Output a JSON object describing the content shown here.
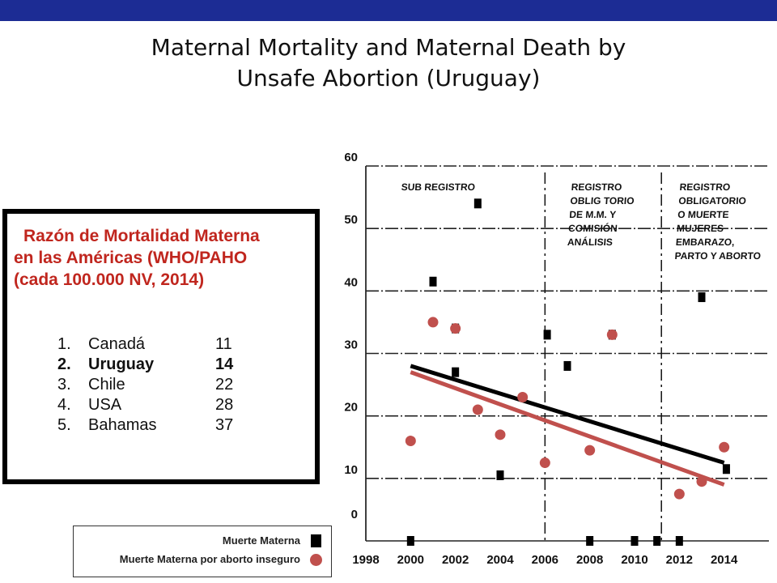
{
  "page": {
    "title_line1": "Maternal Mortality and Maternal Death by",
    "title_line2": "Unsafe Abortion (Uruguay)"
  },
  "ranking_box": {
    "heading_line1": "Razón de Mortalidad Materna",
    "heading_line2": "en las Américas (WHO/PAHO",
    "heading_line3": "(cada 100.000 NV, 2014)",
    "heading_color": "#c0261e",
    "rows": [
      {
        "num": "1.",
        "country": "Canadá",
        "value": "11",
        "bold": false
      },
      {
        "num": "2.",
        "country": "Uruguay",
        "value": "14",
        "bold": true
      },
      {
        "num": "3.",
        "country": "Chile",
        "value": "22",
        "bold": false
      },
      {
        "num": "4.",
        "country": "USA",
        "value": "28",
        "bold": false
      },
      {
        "num": "5.",
        "country": "Bahamas",
        "value": "37",
        "bold": false
      }
    ]
  },
  "legend": {
    "square_label": "Muerte Materna",
    "circle_label": "Muerte Materna por aborto inseguro"
  },
  "chart_data": {
    "type": "scatter",
    "x_ticks": [
      "1998",
      "2000",
      "2002",
      "2004",
      "2006",
      "2008",
      "2010",
      "2012",
      "2014"
    ],
    "y_ticks": [
      "60",
      "50",
      "40",
      "30",
      "20",
      "10",
      "0"
    ],
    "xlim": [
      1998,
      2016
    ],
    "ylim": [
      0,
      60
    ],
    "grid": "horizontal dashed",
    "period_labels": [
      {
        "lines": [
          "SUB REGISTRO"
        ]
      },
      {
        "lines": [
          "REGISTRO",
          "OBLIG TORIO",
          "DE M.M. Y",
          "COMISIÓN",
          "ANÁLISIS"
        ]
      },
      {
        "lines": [
          "REGISTRO",
          "OBLIGATORIO",
          "O MUERTE",
          "MUJERES",
          "EMBARAZO,",
          "PARTO Y ABORTO"
        ]
      }
    ],
    "period_dividers_x": [
      2006,
      2011.2
    ],
    "series": [
      {
        "name": "Muerte Materna",
        "marker": "square",
        "color": "#000000",
        "points": [
          {
            "x": 2000,
            "y": 0
          },
          {
            "x": 2001,
            "y": 41.5
          },
          {
            "x": 2002,
            "y": 34
          },
          {
            "x": 2002,
            "y": 27
          },
          {
            "x": 2003,
            "y": 54
          },
          {
            "x": 2004,
            "y": 10.5
          },
          {
            "x": 2006.1,
            "y": 33
          },
          {
            "x": 2007,
            "y": 28
          },
          {
            "x": 2008,
            "y": 0
          },
          {
            "x": 2009,
            "y": 33
          },
          {
            "x": 2010,
            "y": 0
          },
          {
            "x": 2011,
            "y": 0
          },
          {
            "x": 2012,
            "y": 0
          },
          {
            "x": 2013,
            "y": 39
          },
          {
            "x": 2014.1,
            "y": 11.5
          }
        ],
        "trend": {
          "from": {
            "x": 2000,
            "y": 28
          },
          "to": {
            "x": 2014,
            "y": 12.5
          }
        }
      },
      {
        "name": "Muerte Materna por aborto inseguro",
        "marker": "circle",
        "color": "#c0504d",
        "points": [
          {
            "x": 2000,
            "y": 16
          },
          {
            "x": 2001,
            "y": 35
          },
          {
            "x": 2002,
            "y": 34
          },
          {
            "x": 2003,
            "y": 21
          },
          {
            "x": 2004,
            "y": 17
          },
          {
            "x": 2005,
            "y": 23
          },
          {
            "x": 2006,
            "y": 12.5
          },
          {
            "x": 2008,
            "y": 14.5
          },
          {
            "x": 2009,
            "y": 33
          },
          {
            "x": 2012,
            "y": 7.5
          },
          {
            "x": 2013,
            "y": 9.5
          },
          {
            "x": 2014,
            "y": 15
          }
        ],
        "trend": {
          "from": {
            "x": 2000,
            "y": 27
          },
          "to": {
            "x": 2014,
            "y": 9
          }
        }
      }
    ]
  }
}
